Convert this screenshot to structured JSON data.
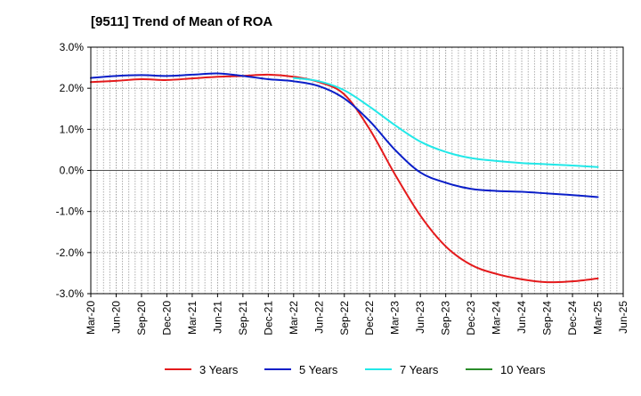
{
  "chart_data": {
    "type": "line",
    "title": "[9511]  Trend of Mean of ROA",
    "xlabel": "",
    "ylabel": "",
    "ylim": [
      -3.0,
      3.0
    ],
    "yticks": [
      "3.0%",
      "2.0%",
      "1.0%",
      "0.0%",
      "-1.0%",
      "-2.0%",
      "-3.0%"
    ],
    "ytick_values": [
      3,
      2,
      1,
      0,
      -1,
      -2,
      -3
    ],
    "categories": [
      "Mar-20",
      "Jun-20",
      "Sep-20",
      "Dec-20",
      "Mar-21",
      "Jun-21",
      "Sep-21",
      "Dec-21",
      "Mar-22",
      "Jun-22",
      "Sep-22",
      "Dec-22",
      "Mar-23",
      "Jun-23",
      "Sep-23",
      "Dec-23",
      "Mar-24",
      "Jun-24",
      "Sep-24",
      "Dec-24",
      "Mar-25",
      "Jun-25"
    ],
    "grid": true,
    "legend_position": "bottom",
    "series": [
      {
        "name": "3 Years",
        "color": "#e41a1c",
        "values": [
          2.15,
          2.18,
          2.22,
          2.2,
          2.24,
          2.28,
          2.3,
          2.33,
          2.28,
          2.15,
          1.85,
          1.0,
          -0.1,
          -1.1,
          -1.85,
          -2.3,
          -2.52,
          -2.65,
          -2.72,
          -2.7,
          -2.63,
          null
        ]
      },
      {
        "name": "5 Years",
        "color": "#0a1ec8",
        "values": [
          2.25,
          2.3,
          2.32,
          2.3,
          2.33,
          2.36,
          2.3,
          2.22,
          2.17,
          2.05,
          1.75,
          1.2,
          0.5,
          -0.05,
          -0.3,
          -0.45,
          -0.5,
          -0.52,
          -0.56,
          -0.6,
          -0.65,
          null
        ]
      },
      {
        "name": "7 Years",
        "color": "#22e8e8",
        "values": [
          null,
          null,
          null,
          null,
          null,
          null,
          null,
          null,
          2.25,
          2.17,
          1.95,
          1.55,
          1.1,
          0.7,
          0.45,
          0.3,
          0.23,
          0.18,
          0.15,
          0.12,
          0.08,
          null
        ]
      },
      {
        "name": "10 Years",
        "color": "#2a8c2a",
        "values": [
          null,
          null,
          null,
          null,
          null,
          null,
          null,
          null,
          null,
          null,
          null,
          null,
          null,
          null,
          null,
          null,
          null,
          null,
          null,
          null,
          null,
          null
        ]
      }
    ]
  }
}
